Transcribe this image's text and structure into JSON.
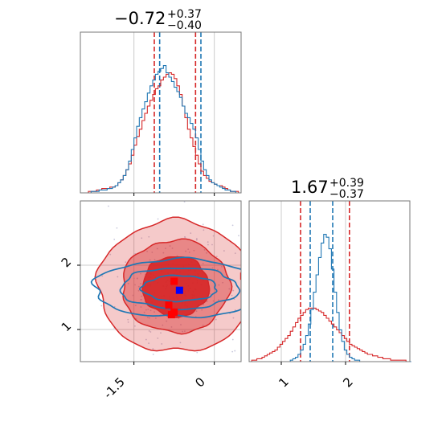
{
  "colors": {
    "red": "#d62728",
    "blue": "#1f77b4",
    "grid": "#cccccc",
    "frame": "#777777",
    "point": "#c8c8dc"
  },
  "chart_data": {
    "type": "corner",
    "panels": [
      {
        "id": "hist-p1",
        "type": "histogram",
        "title": {
          "median": "−0.72",
          "plus": "+0.37",
          "minus": "−0.40"
        },
        "xlim": [
          -2.5,
          0.5
        ],
        "grid_x": [
          -1.5,
          0.0
        ],
        "quantiles": {
          "red": [
            -1.12,
            -0.35
          ],
          "blue": [
            -1.02,
            -0.25
          ]
        },
        "series": [
          {
            "name": "red",
            "color": "#d62728",
            "x0": -2.5,
            "bin_width": 0.05,
            "values": [
              0,
              0,
              0,
              0.01,
              0.01,
              0.01,
              0.02,
              0.02,
              0.03,
              0.03,
              0.03,
              0.04,
              0.04,
              0.05,
              0.07,
              0.09,
              0.12,
              0.16,
              0.2,
              0.26,
              0.33,
              0.39,
              0.44,
              0.5,
              0.55,
              0.6,
              0.64,
              0.68,
              0.72,
              0.74,
              0.78,
              0.8,
              0.82,
              0.83,
              0.82,
              0.79,
              0.74,
              0.68,
              0.6,
              0.52,
              0.44,
              0.38,
              0.32,
              0.26,
              0.2,
              0.15,
              0.12,
              0.1,
              0.08,
              0.07,
              0.06,
              0.05,
              0.05,
              0.04,
              0.03,
              0.02,
              0.01,
              0.01,
              0.01,
              0
            ]
          },
          {
            "name": "blue",
            "color": "#1f77b4",
            "x0": -2.5,
            "bin_width": 0.05,
            "values": [
              0,
              0,
              0,
              0,
              0.01,
              0.01,
              0.01,
              0.02,
              0.02,
              0.02,
              0.03,
              0.03,
              0.04,
              0.05,
              0.07,
              0.09,
              0.12,
              0.16,
              0.22,
              0.3,
              0.38,
              0.46,
              0.52,
              0.58,
              0.63,
              0.69,
              0.74,
              0.78,
              0.82,
              0.84,
              0.86,
              0.88,
              0.83,
              0.8,
              0.77,
              0.73,
              0.7,
              0.66,
              0.6,
              0.55,
              0.52,
              0.48,
              0.44,
              0.38,
              0.3,
              0.22,
              0.16,
              0.12,
              0.09,
              0.07,
              0.06,
              0.05,
              0.04,
              0.03,
              0.02,
              0.02,
              0.01,
              0.01,
              0,
              0
            ]
          }
        ]
      },
      {
        "id": "hist-p2",
        "type": "histogram",
        "title": {
          "median": "1.67",
          "plus": "+0.39",
          "minus": "−0.37"
        },
        "xlim": [
          0.5,
          3.0
        ],
        "grid_x": [
          1.0,
          2.0
        ],
        "xticks": [
          1,
          2
        ],
        "quantiles": {
          "red": [
            1.3,
            2.06
          ],
          "blue": [
            1.45,
            1.8
          ]
        },
        "series": [
          {
            "name": "red",
            "color": "#d62728",
            "x0": 0.5,
            "bin_width": 0.04,
            "values": [
              0,
              0.01,
              0.01,
              0.02,
              0.02,
              0.03,
              0.04,
              0.05,
              0.06,
              0.07,
              0.08,
              0.1,
              0.12,
              0.14,
              0.16,
              0.18,
              0.21,
              0.24,
              0.27,
              0.3,
              0.32,
              0.34,
              0.36,
              0.37,
              0.37,
              0.37,
              0.36,
              0.35,
              0.34,
              0.32,
              0.3,
              0.28,
              0.26,
              0.24,
              0.22,
              0.2,
              0.18,
              0.16,
              0.14,
              0.12,
              0.11,
              0.1,
              0.09,
              0.08,
              0.07,
              0.06,
              0.05,
              0.05,
              0.04,
              0.04,
              0.03,
              0.03,
              0.02,
              0.02,
              0.02,
              0.01,
              0.01,
              0.01,
              0.01,
              0.01,
              0.01,
              0,
              0
            ]
          },
          {
            "name": "blue",
            "color": "#1f77b4",
            "x0": 0.5,
            "bin_width": 0.04,
            "values": [
              0,
              0,
              0,
              0,
              0,
              0,
              0,
              0,
              0,
              0,
              0,
              0,
              0,
              0,
              0,
              0,
              0.01,
              0.02,
              0.03,
              0.05,
              0.08,
              0.12,
              0.18,
              0.26,
              0.36,
              0.48,
              0.6,
              0.72,
              0.82,
              0.88,
              0.86,
              0.78,
              0.64,
              0.48,
              0.34,
              0.22,
              0.14,
              0.08,
              0.05,
              0.03,
              0.02,
              0.01,
              0.01,
              0,
              0,
              0,
              0,
              0,
              0,
              0,
              0,
              0,
              0,
              0,
              0,
              0,
              0,
              0,
              0,
              0,
              0,
              0,
              0
            ]
          }
        ]
      },
      {
        "id": "scatter-p1-p2",
        "type": "contour",
        "xlim": [
          -2.5,
          0.5
        ],
        "ylim": [
          0.5,
          3.0
        ],
        "grid_x": [
          -1.5,
          0.0
        ],
        "grid_y": [
          1,
          2
        ],
        "xticks": [
          -1.5,
          0.0
        ],
        "yticks": [
          1,
          2
        ],
        "red_contour": {
          "center": [
            -0.72,
            1.67
          ],
          "radii_x": [
            1.45,
            1.0,
            0.62
          ],
          "radii_y": [
            1.02,
            0.72,
            0.47
          ],
          "fill_opacity": [
            0.45,
            0.75,
            0.95
          ]
        },
        "blue_contour": {
          "center": [
            -0.65,
            1.64
          ],
          "radii_x": [
            1.6,
            1.1,
            0.7
          ],
          "radii_y": [
            0.45,
            0.32,
            0.2
          ]
        },
        "markers": [
          {
            "x": -0.75,
            "y": 1.75,
            "color": "#ff0000"
          },
          {
            "x": -0.85,
            "y": 1.38,
            "color": "#ff0000"
          },
          {
            "x": -0.75,
            "y": 1.27,
            "color": "#ff0000"
          },
          {
            "x": -0.8,
            "y": 1.23,
            "color": "#ff0000"
          },
          {
            "x": 0.55,
            "y": 1.83,
            "color": "#ff0000"
          },
          {
            "x": -0.65,
            "y": 1.61,
            "color": "#0000ff"
          }
        ]
      }
    ]
  }
}
